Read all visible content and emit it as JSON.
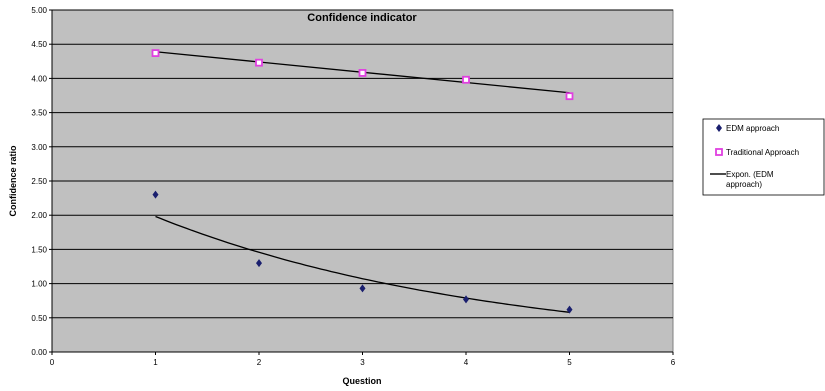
{
  "chart_data": {
    "type": "scatter",
    "title": "Confidence indicator",
    "xlabel": "Question",
    "ylabel": "Confidence ratio",
    "xlim": [
      0,
      6
    ],
    "ylim": [
      0,
      5
    ],
    "xticks": [
      0,
      1,
      2,
      3,
      4,
      5,
      6
    ],
    "yticks": [
      "0.00",
      "0.50",
      "1.00",
      "1.50",
      "2.00",
      "2.50",
      "3.00",
      "3.50",
      "4.00",
      "4.50",
      "5.00"
    ],
    "grid": true,
    "legend_position": "right",
    "series": [
      {
        "name": "EDM approach",
        "marker": "diamond",
        "color": "#1a1f6e",
        "x": [
          1,
          2,
          3,
          4,
          5
        ],
        "y": [
          2.3,
          1.3,
          0.93,
          0.77,
          0.62
        ]
      },
      {
        "name": "Traditional Approach",
        "marker": "square",
        "color": "#e040e0",
        "x": [
          1,
          2,
          3,
          4,
          5
        ],
        "y": [
          4.37,
          4.23,
          4.08,
          3.98,
          3.74
        ]
      }
    ],
    "trendlines": [
      {
        "name": "Expon. (EDM approach)",
        "type": "exponential",
        "color": "#000000",
        "x": [
          1,
          2,
          3,
          4,
          5
        ],
        "y": [
          1.98,
          1.46,
          1.07,
          0.79,
          0.58
        ]
      },
      {
        "name": "",
        "type": "linear",
        "color": "#000000",
        "x": [
          1,
          5
        ],
        "y": [
          4.39,
          3.79
        ]
      }
    ],
    "colors": {
      "plot_background": "#c0c0c0",
      "gridline": "#000000"
    }
  }
}
